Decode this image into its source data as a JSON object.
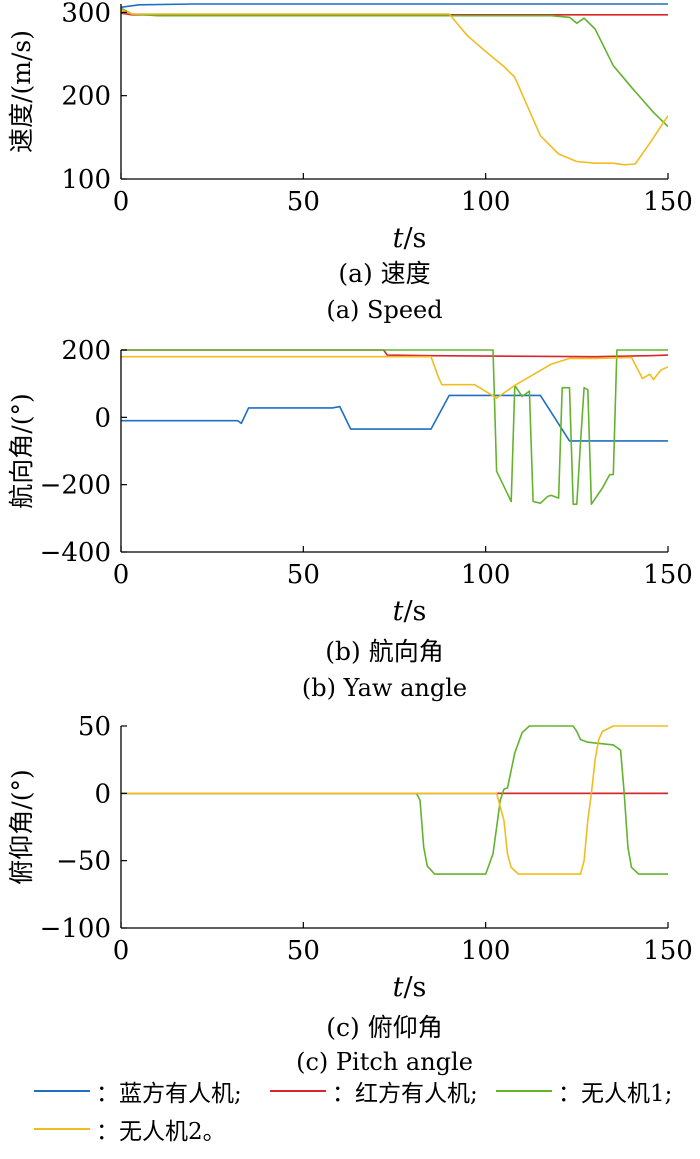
{
  "colors": {
    "blue": "#1f6fc2",
    "red": "#d8262c",
    "green": "#63b32e",
    "yellow": "#f0bd21"
  },
  "legend": [
    {
      "label": "：蓝方有人机;",
      "color": "#1f6fc2"
    },
    {
      "label": "：红方有人机;",
      "color": "#d8262c"
    },
    {
      "label": "：无人机1;",
      "color": "#63b32e"
    },
    {
      "label": "：无人机2。",
      "color": "#f0bd21"
    }
  ],
  "chart_data": [
    {
      "type": "line",
      "title": "(a) 速度",
      "subtitle": "(a) Speed",
      "xlabel": "t/s",
      "ylabel": "速度/(m/s)",
      "xlim": [
        0,
        150
      ],
      "ylim": [
        100,
        310
      ],
      "xticks": [
        "0",
        "50",
        "100",
        "150"
      ],
      "yticks": [
        "100",
        "200",
        "300"
      ],
      "series": [
        {
          "color": "#1f6fc2",
          "points": [
            [
              0,
              306
            ],
            [
              5,
              309
            ],
            [
              20,
              310
            ],
            [
              150,
              310
            ]
          ]
        },
        {
          "color": "#d8262c",
          "points": [
            [
              0,
              299
            ],
            [
              3,
              297
            ],
            [
              10,
              297
            ],
            [
              150,
              297
            ]
          ]
        },
        {
          "color": "#63b32e",
          "points": [
            [
              0,
              305
            ],
            [
              3,
              298
            ],
            [
              10,
              296
            ],
            [
              118,
              296
            ],
            [
              123,
              294
            ],
            [
              125,
              287
            ],
            [
              127,
              293
            ],
            [
              130,
              280
            ],
            [
              135,
              236
            ],
            [
              140,
              210
            ],
            [
              146,
              180
            ],
            [
              150,
              163
            ]
          ]
        },
        {
          "color": "#f0bd21",
          "points": [
            [
              0,
              303
            ],
            [
              3,
              298
            ],
            [
              10,
              298
            ],
            [
              90,
              298
            ],
            [
              95,
              272
            ],
            [
              100,
              253
            ],
            [
              105,
              235
            ],
            [
              108,
              222
            ],
            [
              112,
              182
            ],
            [
              115,
              152
            ],
            [
              120,
              130
            ],
            [
              125,
              121
            ],
            [
              130,
              119
            ],
            [
              135,
              119
            ],
            [
              138,
              117
            ],
            [
              141,
              118
            ],
            [
              145,
              143
            ],
            [
              150,
              176
            ]
          ]
        }
      ]
    },
    {
      "type": "line",
      "title": "(b) 航向角",
      "subtitle": "(b) Yaw angle",
      "xlabel": "t/s",
      "ylabel": "航向角/(°)",
      "xlim": [
        0,
        150
      ],
      "ylim": [
        -400,
        200
      ],
      "xticks": [
        "0",
        "50",
        "100",
        "150"
      ],
      "yticks": [
        "−400",
        "−200",
        "0",
        "200"
      ],
      "series": [
        {
          "color": "#1f6fc2",
          "points": [
            [
              0,
              -10
            ],
            [
              32,
              -10
            ],
            [
              33,
              -18
            ],
            [
              35,
              28
            ],
            [
              58,
              28
            ],
            [
              60,
              32
            ],
            [
              63,
              -35
            ],
            [
              85,
              -35
            ],
            [
              90,
              65
            ],
            [
              115,
              65
            ],
            [
              123,
              -70
            ],
            [
              150,
              -70
            ]
          ]
        },
        {
          "color": "#d8262c",
          "points": [
            [
              0,
              200
            ],
            [
              72,
              200
            ],
            [
              73,
              185
            ],
            [
              85,
              183
            ],
            [
              130,
              180
            ],
            [
              145,
              183
            ],
            [
              150,
              185
            ]
          ]
        },
        {
          "color": "#63b32e",
          "points": [
            [
              0,
              200
            ],
            [
              102,
              200
            ],
            [
              103,
              -160
            ],
            [
              107,
              -250
            ],
            [
              108,
              95
            ],
            [
              110,
              62
            ],
            [
              112,
              78
            ],
            [
              113,
              -250
            ],
            [
              115,
              -255
            ],
            [
              117,
              -235
            ],
            [
              118,
              -232
            ],
            [
              120,
              -240
            ],
            [
              121,
              88
            ],
            [
              123,
              88
            ],
            [
              124,
              -258
            ],
            [
              125,
              -258
            ],
            [
              126,
              -75
            ],
            [
              127,
              88
            ],
            [
              128,
              82
            ],
            [
              129,
              -258
            ],
            [
              132,
              -210
            ],
            [
              134,
              -170
            ],
            [
              135,
              -170
            ],
            [
              136,
              200
            ],
            [
              150,
              200
            ]
          ]
        },
        {
          "color": "#f0bd21",
          "points": [
            [
              0,
              180
            ],
            [
              85,
              180
            ],
            [
              87,
              120
            ],
            [
              88,
              97
            ],
            [
              97,
              97
            ],
            [
              103,
              57
            ],
            [
              108,
              95
            ],
            [
              118,
              158
            ],
            [
              123,
              175
            ],
            [
              130,
              175
            ],
            [
              140,
              178
            ],
            [
              143,
              115
            ],
            [
              145,
              128
            ],
            [
              146,
              112
            ],
            [
              148,
              140
            ],
            [
              150,
              150
            ]
          ]
        }
      ]
    },
    {
      "type": "line",
      "title": "(c) 俯仰角",
      "subtitle": "(c) Pitch angle",
      "xlabel": "t/s",
      "ylabel": "俯仰角/(°)",
      "xlim": [
        0,
        150
      ],
      "ylim": [
        -100,
        50
      ],
      "xticks": [
        "0",
        "50",
        "100",
        "150"
      ],
      "yticks": [
        "−100",
        "−50",
        "0",
        "50"
      ],
      "series": [
        {
          "color": "#1f6fc2",
          "points": [
            [
              0,
              0
            ],
            [
              150,
              0
            ]
          ]
        },
        {
          "color": "#d8262c",
          "points": [
            [
              0,
              0
            ],
            [
              150,
              0
            ]
          ]
        },
        {
          "color": "#63b32e",
          "points": [
            [
              0,
              0
            ],
            [
              81,
              0
            ],
            [
              82,
              -5
            ],
            [
              83,
              -40
            ],
            [
              84,
              -54
            ],
            [
              86,
              -60
            ],
            [
              100,
              -60
            ],
            [
              102,
              -45
            ],
            [
              104,
              -5
            ],
            [
              105,
              3
            ],
            [
              106,
              4
            ],
            [
              108,
              30
            ],
            [
              110,
              45
            ],
            [
              112,
              50
            ],
            [
              124,
              50
            ],
            [
              125,
              46
            ],
            [
              126,
              40
            ],
            [
              128,
              38
            ],
            [
              135,
              36
            ],
            [
              137,
              32
            ],
            [
              138,
              0
            ],
            [
              139,
              -40
            ],
            [
              140,
              -55
            ],
            [
              142,
              -60
            ],
            [
              150,
              -60
            ]
          ]
        },
        {
          "color": "#f0bd21",
          "points": [
            [
              0,
              0
            ],
            [
              103,
              0
            ],
            [
              105,
              -20
            ],
            [
              106,
              -45
            ],
            [
              107,
              -55
            ],
            [
              109,
              -60
            ],
            [
              126,
              -60
            ],
            [
              127,
              -50
            ],
            [
              128,
              -20
            ],
            [
              129,
              0
            ],
            [
              130,
              25
            ],
            [
              131,
              40
            ],
            [
              132,
              46
            ],
            [
              135,
              50
            ],
            [
              150,
              50
            ]
          ]
        }
      ]
    }
  ]
}
